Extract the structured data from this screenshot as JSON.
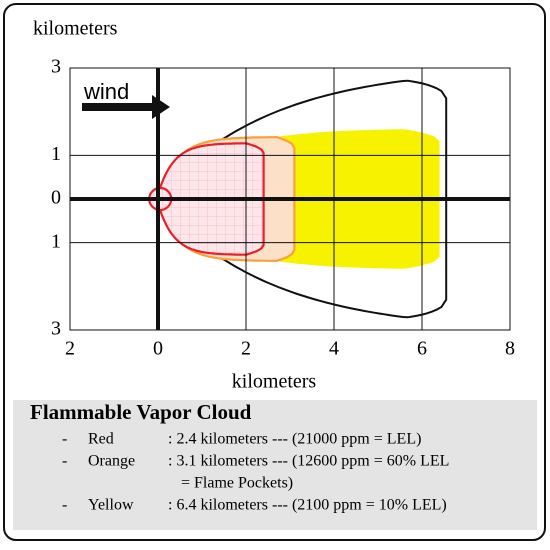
{
  "chart_data": {
    "type": "threat-zone",
    "y_label": "kilometers",
    "x_label": "kilometers",
    "wind_label": "wind",
    "xlim": [
      -2,
      8
    ],
    "ylim": [
      -3,
      3
    ],
    "xticks": [
      {
        "value": -2,
        "label": "2"
      },
      0,
      2,
      4,
      6,
      8
    ],
    "yticks": [
      {
        "value": -3,
        "label": "3"
      },
      {
        "value": -1,
        "label": "1"
      },
      0,
      1,
      3
    ],
    "grid": true,
    "legend_title": "Flammable Vapor Cloud",
    "zones": [
      {
        "marker": "-",
        "name": "Red",
        "color": "#e8202a",
        "distance": 2.4,
        "text": [
          ": 2.4 kilometers --- (21000 ppm = LEL)"
        ]
      },
      {
        "marker": "-",
        "name": "Orange",
        "color": "#f7a13c",
        "distance": 3.1,
        "text": [
          ": 3.1 kilometers --- (12600 ppm = 60% LEL",
          "= Flame Pockets)"
        ]
      },
      {
        "marker": "-",
        "name": "Yellow",
        "color": "#f7f200",
        "distance": 6.4,
        "text": [
          ": 6.4 kilometers --- (2100 ppm = 10% LEL)"
        ]
      }
    ]
  }
}
